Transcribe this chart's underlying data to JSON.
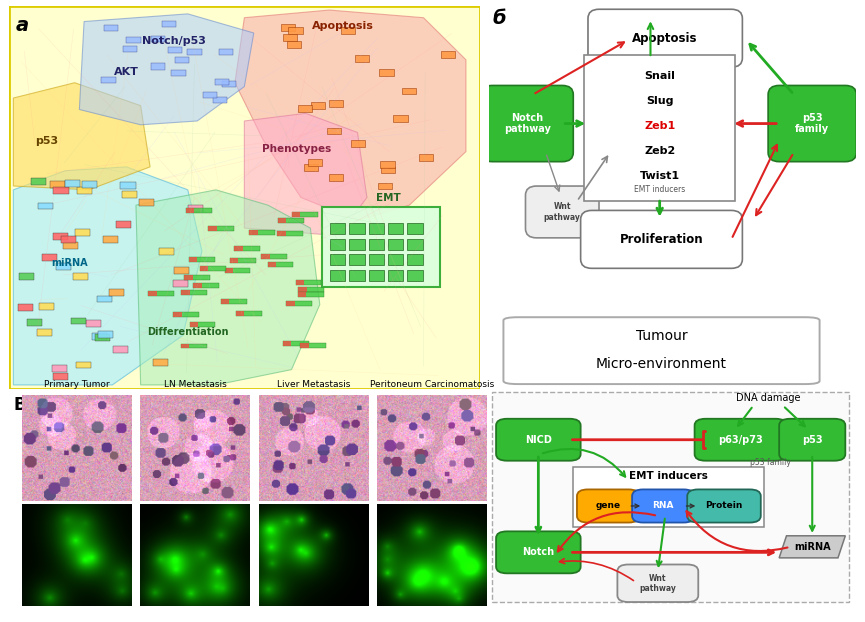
{
  "panel_a_bg": "#FFFFD0",
  "panel_a_border": "#DDCC00",
  "green_node": "#33BB33",
  "green_node_edge": "#227722",
  "red_arrow": "#DD2222",
  "green_arrow": "#22AA22",
  "gray_arrow": "#888888",
  "gene_color": "#FFAA00",
  "rna_color": "#4488FF",
  "protein_color": "#44BBAA",
  "mirna_color": "#CCCCCC",
  "microscopy_labels": [
    "Primary Tumor",
    "LN Metastasis",
    "Liver Metastasis",
    "Peritoneum Carcinomatosis"
  ],
  "label_a": "а",
  "label_b": "б",
  "label_B": "B"
}
